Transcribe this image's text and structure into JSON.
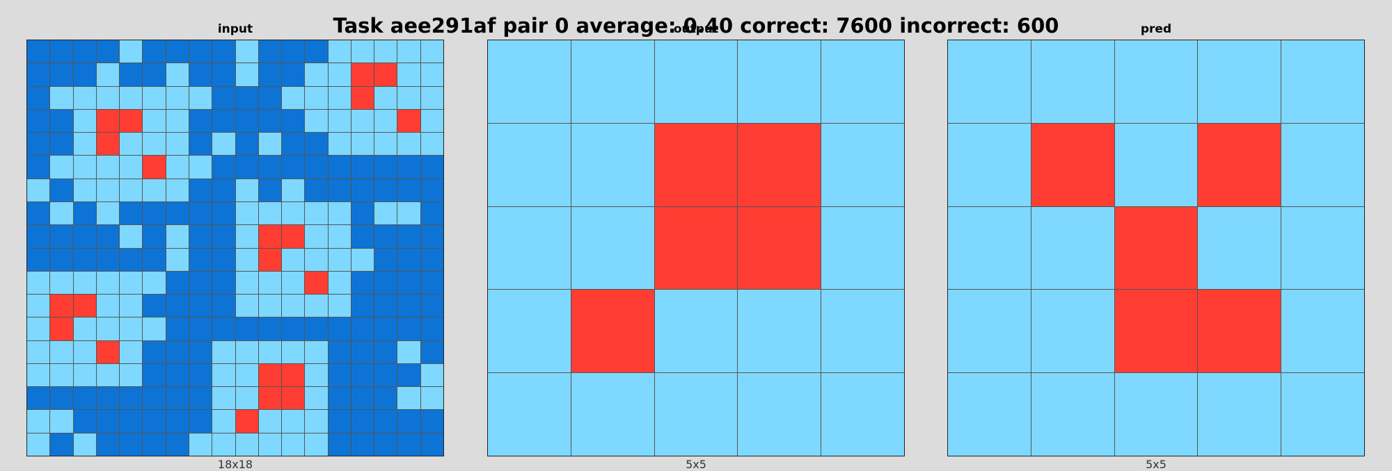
{
  "title": "Task aee291af pair 0 average: 0.40 correct: 7600 incorrect: 600",
  "palette": {
    "1": "#0d74d6",
    "8": "#7fd8ff",
    "2": "#ff3d33"
  },
  "panels": [
    {
      "label": "input",
      "caption": "18x18",
      "grid": [
        [
          1,
          1,
          1,
          1,
          8,
          1,
          1,
          1,
          1,
          8,
          1,
          1,
          1,
          8,
          8,
          8,
          8,
          8
        ],
        [
          1,
          1,
          1,
          8,
          1,
          1,
          8,
          1,
          1,
          8,
          1,
          1,
          8,
          8,
          2,
          2,
          8,
          8
        ],
        [
          1,
          8,
          8,
          8,
          8,
          8,
          8,
          8,
          1,
          1,
          1,
          8,
          8,
          8,
          2,
          8,
          8,
          8
        ],
        [
          1,
          1,
          8,
          2,
          2,
          8,
          8,
          1,
          1,
          1,
          1,
          1,
          8,
          8,
          8,
          8,
          2,
          8
        ],
        [
          1,
          1,
          8,
          2,
          8,
          8,
          8,
          1,
          8,
          1,
          8,
          1,
          1,
          8,
          8,
          8,
          8,
          8
        ],
        [
          1,
          8,
          8,
          8,
          8,
          2,
          8,
          8,
          1,
          1,
          1,
          1,
          1,
          1,
          1,
          1,
          1,
          1
        ],
        [
          8,
          1,
          8,
          8,
          8,
          8,
          8,
          1,
          1,
          8,
          1,
          8,
          1,
          1,
          1,
          1,
          1,
          1
        ],
        [
          1,
          8,
          1,
          8,
          1,
          1,
          1,
          1,
          1,
          8,
          8,
          8,
          8,
          8,
          1,
          8,
          8,
          1
        ],
        [
          1,
          1,
          1,
          1,
          8,
          1,
          8,
          1,
          1,
          8,
          2,
          2,
          8,
          8,
          1,
          1,
          1,
          1
        ],
        [
          1,
          1,
          1,
          1,
          1,
          1,
          8,
          1,
          1,
          8,
          2,
          8,
          8,
          8,
          8,
          1,
          1,
          1
        ],
        [
          8,
          8,
          8,
          8,
          8,
          8,
          1,
          1,
          1,
          8,
          8,
          8,
          2,
          8,
          1,
          1,
          1,
          1
        ],
        [
          8,
          2,
          2,
          8,
          8,
          1,
          1,
          1,
          1,
          8,
          8,
          8,
          8,
          8,
          1,
          1,
          1,
          1
        ],
        [
          8,
          2,
          8,
          8,
          8,
          8,
          1,
          1,
          1,
          1,
          1,
          1,
          1,
          1,
          1,
          1,
          1,
          1
        ],
        [
          8,
          8,
          8,
          2,
          8,
          1,
          1,
          1,
          8,
          8,
          8,
          8,
          8,
          1,
          1,
          1,
          8,
          1
        ],
        [
          8,
          8,
          8,
          8,
          8,
          1,
          1,
          1,
          8,
          8,
          2,
          2,
          8,
          1,
          1,
          1,
          1,
          8
        ],
        [
          1,
          1,
          1,
          1,
          1,
          1,
          1,
          1,
          8,
          8,
          2,
          2,
          8,
          1,
          1,
          1,
          8,
          8
        ],
        [
          8,
          8,
          1,
          1,
          1,
          1,
          1,
          1,
          8,
          2,
          8,
          8,
          8,
          1,
          1,
          1,
          1,
          1
        ],
        [
          8,
          1,
          8,
          1,
          1,
          1,
          1,
          8,
          8,
          8,
          8,
          8,
          8,
          1,
          1,
          1,
          1,
          1
        ]
      ]
    },
    {
      "label": "output",
      "caption": "5x5",
      "grid": [
        [
          8,
          8,
          8,
          8,
          8
        ],
        [
          8,
          8,
          2,
          2,
          8
        ],
        [
          8,
          8,
          2,
          2,
          8
        ],
        [
          8,
          2,
          8,
          8,
          8
        ],
        [
          8,
          8,
          8,
          8,
          8
        ]
      ]
    },
    {
      "label": "pred",
      "caption": "5x5",
      "grid": [
        [
          8,
          8,
          8,
          8,
          8
        ],
        [
          8,
          2,
          8,
          2,
          8
        ],
        [
          8,
          8,
          2,
          8,
          8
        ],
        [
          8,
          8,
          2,
          2,
          8
        ],
        [
          8,
          8,
          8,
          8,
          8
        ]
      ]
    }
  ]
}
